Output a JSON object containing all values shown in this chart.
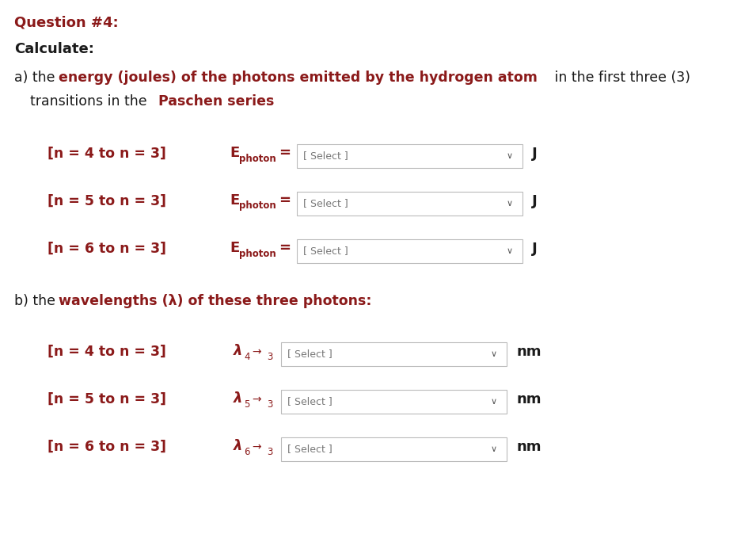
{
  "background_color": "#ffffff",
  "dark_red": "#8B1A1A",
  "black": "#1a1a1a",
  "gray_text": "#555555",
  "dropdown_border": "#bbbbbb",
  "dropdown_bg": "#ffffff",
  "select_text": "[ Select ]",
  "chevron": "∨",
  "figwidth": 9.37,
  "figheight": 7.03,
  "dpi": 100,
  "q_title": "Question #4:",
  "calc_label": "Calculate:",
  "rows_a": [
    {
      "transition": "[n = 4 to n = 3]",
      "unit": "J"
    },
    {
      "transition": "[n = 5 to n = 3]",
      "unit": "J"
    },
    {
      "transition": "[n = 6 to n = 3]",
      "unit": "J"
    }
  ],
  "rows_b": [
    {
      "transition": "[n = 4 to n = 3]",
      "lambda_sub": "4",
      "unit": "nm"
    },
    {
      "transition": "[n = 5 to n = 3]",
      "lambda_sub": "5",
      "unit": "nm"
    },
    {
      "transition": "[n = 6 to n = 3]",
      "lambda_sub": "6",
      "unit": "nm"
    }
  ]
}
